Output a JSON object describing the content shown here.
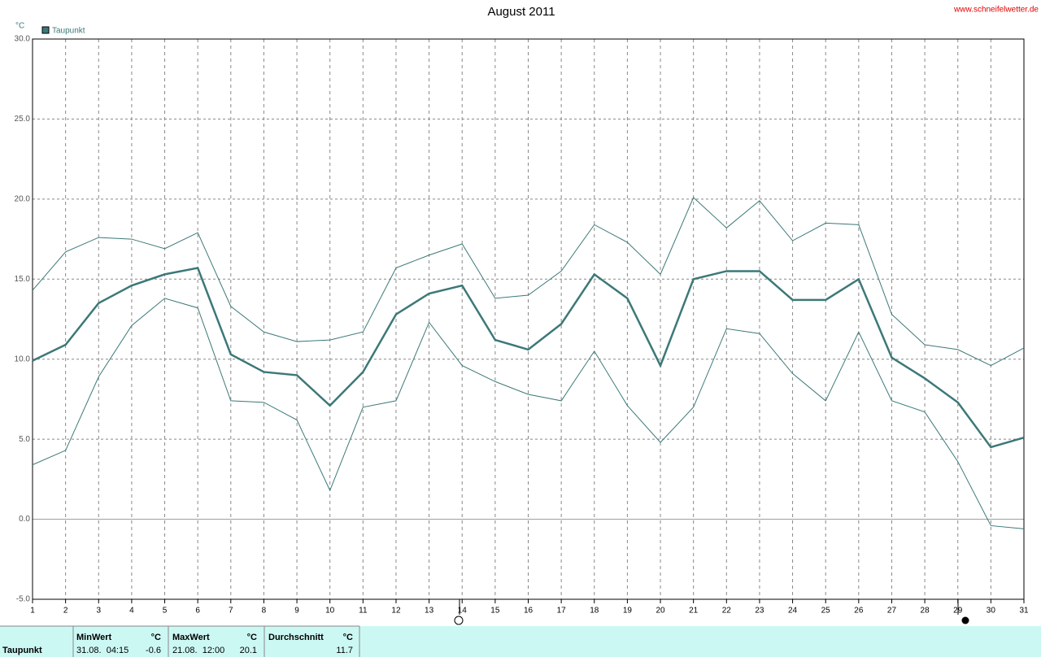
{
  "chart_data": {
    "type": "line",
    "title": "August 2011",
    "source": "www.schneifelwetter.de",
    "y_unit": "°C",
    "x": [
      1,
      2,
      3,
      4,
      5,
      6,
      7,
      8,
      9,
      10,
      11,
      12,
      13,
      14,
      15,
      16,
      17,
      18,
      19,
      20,
      21,
      22,
      23,
      24,
      25,
      26,
      27,
      28,
      29,
      30,
      31
    ],
    "xlim": [
      1,
      31
    ],
    "xticks": [
      1,
      2,
      3,
      4,
      5,
      6,
      7,
      8,
      9,
      10,
      11,
      12,
      13,
      14,
      15,
      16,
      17,
      18,
      19,
      20,
      21,
      22,
      23,
      24,
      25,
      26,
      27,
      28,
      29,
      30,
      31
    ],
    "ylim": [
      -5,
      30
    ],
    "yticks": [
      {
        "value": -5,
        "label": "-5.0"
      },
      {
        "value": 0,
        "label": "0.0"
      },
      {
        "value": 5,
        "label": "5.0"
      },
      {
        "value": 10,
        "label": "10.0"
      },
      {
        "value": 15,
        "label": "15.0"
      },
      {
        "value": 20,
        "label": "20.0"
      },
      {
        "value": 25,
        "label": "25.0"
      },
      {
        "value": 30,
        "label": "30.0"
      }
    ],
    "grid": true,
    "legend": "top-left",
    "series": [
      {
        "name": "Taupunkt",
        "color": "#3d7878",
        "values": [
          9.9,
          10.9,
          13.5,
          14.6,
          15.3,
          15.7,
          10.3,
          9.2,
          9.0,
          7.1,
          9.2,
          12.8,
          14.1,
          14.6,
          11.2,
          10.6,
          12.2,
          15.3,
          13.8,
          9.6,
          15.0,
          15.5,
          15.5,
          13.7,
          13.7,
          15.0,
          10.1,
          8.8,
          7.3,
          4.5,
          5.1
        ]
      },
      {
        "color": "#3d7878",
        "values": [
          14.3,
          16.7,
          17.6,
          17.5,
          16.9,
          17.9,
          13.3,
          11.7,
          11.1,
          11.2,
          11.7,
          15.7,
          16.5,
          17.2,
          13.8,
          14.0,
          15.5,
          18.4,
          17.3,
          15.3,
          20.1,
          18.2,
          19.9,
          17.4,
          18.5,
          18.4,
          12.8,
          10.9,
          10.6,
          9.6,
          10.7
        ]
      },
      {
        "color": "#3d7878",
        "values": [
          3.4,
          4.3,
          8.9,
          12.1,
          13.8,
          13.2,
          7.4,
          7.3,
          6.2,
          1.8,
          7.0,
          7.4,
          12.3,
          9.6,
          8.6,
          7.8,
          7.4,
          10.5,
          7.1,
          4.8,
          7.0,
          11.9,
          11.6,
          9.1,
          7.4,
          11.7,
          7.4,
          6.7,
          3.6,
          -0.4,
          -0.6
        ]
      }
    ]
  },
  "summary": {
    "row_label": "Taupunkt",
    "headers": [
      "MinWert",
      "°C",
      "MaxWert",
      "°C",
      "Durchschnitt",
      "°C"
    ],
    "cells": [
      "31.08.  04:15",
      "-0.6",
      "21.08.  12:00",
      "20.1",
      "11.7"
    ]
  }
}
